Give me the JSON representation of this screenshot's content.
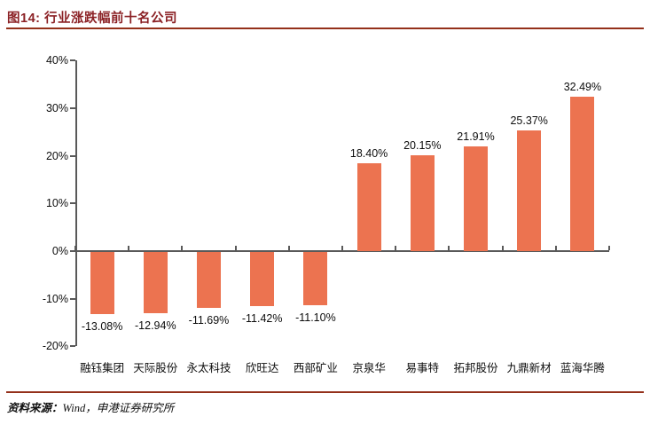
{
  "header": {
    "title": "图14:  行业涨跌幅前十名公司"
  },
  "footer": {
    "source_label": "资料来源：",
    "source_rest": "Wind，申港证券研究所"
  },
  "colors": {
    "bar": "#EC7350",
    "axis": "#595959",
    "title_text": "#8B2125",
    "accent_rule": "#94301A",
    "label_text": "#0D0D0D"
  },
  "chart_data": {
    "type": "bar",
    "title": "行业涨跌幅前十名公司",
    "categories": [
      "融钰集团",
      "天际股份",
      "永太科技",
      "欣旺达",
      "西部矿业",
      "京泉华",
      "易事特",
      "拓邦股份",
      "九鼎新材",
      "蓝海华腾"
    ],
    "values": [
      -13.08,
      -12.94,
      -11.69,
      -11.42,
      -11.1,
      18.4,
      20.15,
      21.91,
      25.37,
      32.49
    ],
    "value_labels": [
      "-13.08%",
      "-12.94%",
      "-11.69%",
      "-11.42%",
      "-11.10%",
      "18.40%",
      "20.15%",
      "21.91%",
      "25.37%",
      "32.49%"
    ],
    "ylabel": "",
    "xlabel": "",
    "ylim": [
      -20,
      40
    ],
    "yticks": [
      40,
      30,
      20,
      10,
      0,
      -10,
      -20
    ],
    "ytick_labels": [
      "40%",
      "30%",
      "20%",
      "10%",
      "0%",
      "-10%",
      "-20%"
    ],
    "grid": false,
    "legend": null,
    "bar_color": "#EC7350"
  }
}
